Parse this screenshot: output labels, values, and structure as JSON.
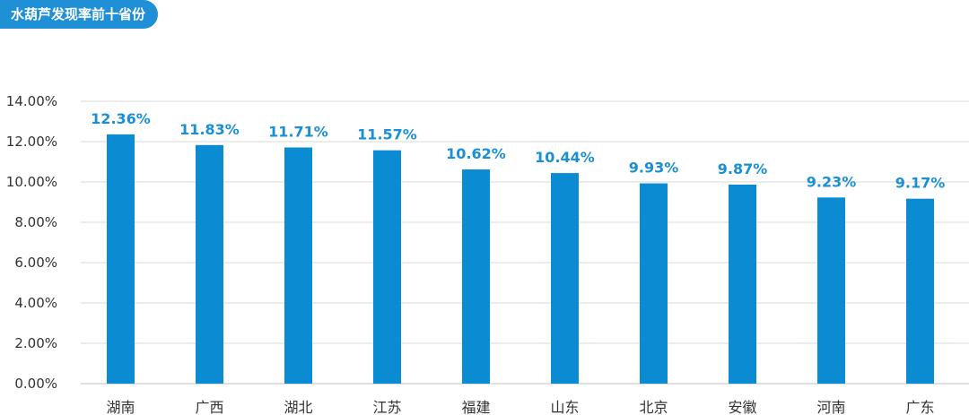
{
  "title": "水葫芦发现率前十省份",
  "colors": {
    "bar": "#0a8bd2",
    "label": "#1a8fd6",
    "title_bg": "#1f8fd6",
    "grid": "#d9d9d9"
  },
  "chart_data": {
    "type": "bar",
    "title": "水葫芦发现率前十省份",
    "categories": [
      "湖南",
      "广西",
      "湖北",
      "江苏",
      "福建",
      "山东",
      "北京",
      "安徽",
      "河南",
      "广东"
    ],
    "values": [
      12.36,
      11.83,
      11.71,
      11.57,
      10.62,
      10.44,
      9.93,
      9.87,
      9.23,
      9.17
    ],
    "value_labels": [
      "12.36%",
      "11.83%",
      "11.71%",
      "11.57%",
      "10.62%",
      "10.44%",
      "9.93%",
      "9.87%",
      "9.23%",
      "9.17%"
    ],
    "ylim": [
      0,
      14
    ],
    "yticks": [
      0,
      2,
      4,
      6,
      8,
      10,
      12,
      14
    ],
    "ytick_labels": [
      "0.00%",
      "2.00%",
      "4.00%",
      "6.00%",
      "8.00%",
      "10.00%",
      "12.00%",
      "14.00%"
    ],
    "xlabel": "",
    "ylabel": "",
    "grid": true,
    "legend": "none"
  }
}
